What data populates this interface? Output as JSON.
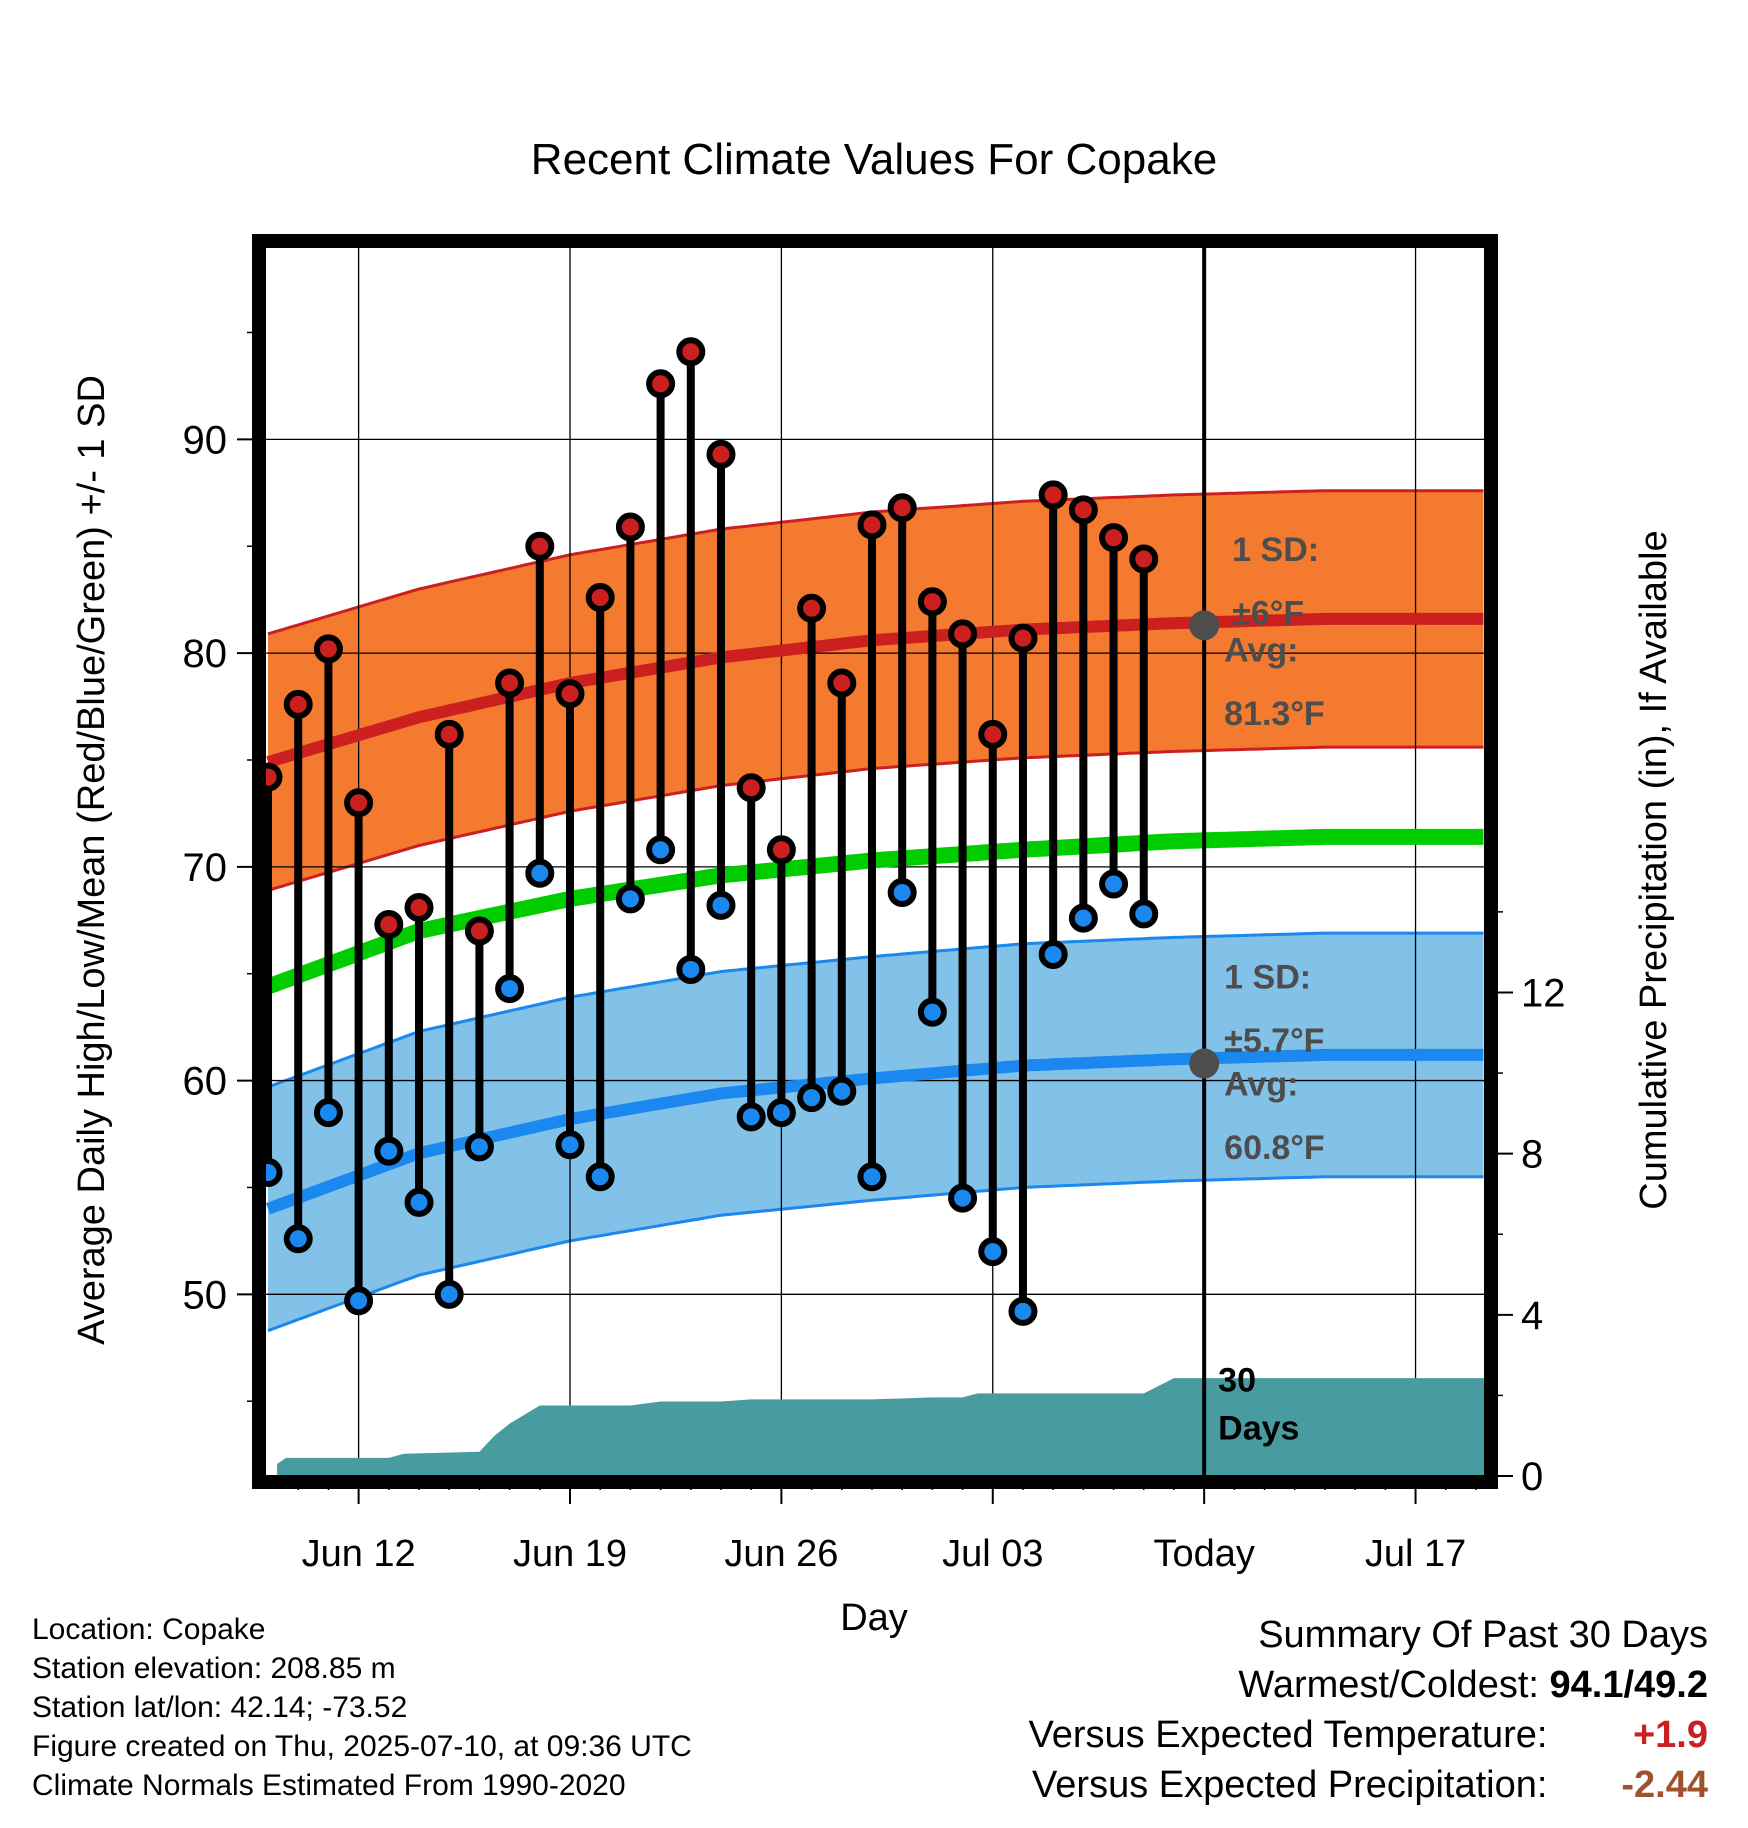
{
  "chart_data": {
    "type": "line",
    "title": "Recent Climate Values For Copake",
    "xlabel": "Day",
    "ylabel_left": "Average Daily High/Low/Mean (Red/Blue/Green) +/- 1 SD",
    "ylabel_right": "Cumulative Precipitation (in), If Available",
    "x_ticks": [
      {
        "day": 3,
        "label": "Jun 12"
      },
      {
        "day": 10,
        "label": "Jun 19"
      },
      {
        "day": 17,
        "label": "Jun 26"
      },
      {
        "day": 24,
        "label": "Jul 03"
      },
      {
        "day": 31,
        "label": "Today"
      },
      {
        "day": 38,
        "label": "Jul 17"
      }
    ],
    "xlim": [
      -0.1,
      40.3
    ],
    "ylim_left": [
      41.5,
      99.0
    ],
    "yticks_left": [
      50,
      60,
      70,
      80,
      90
    ],
    "ylim_right": [
      0,
      30.5
    ],
    "yticks_right": [
      0,
      4,
      8,
      12
    ],
    "today_day": 31,
    "observed_days": [
      0,
      1,
      2,
      3,
      4,
      5,
      6,
      7,
      8,
      9,
      10,
      11,
      12,
      13,
      14,
      15,
      16,
      17,
      18,
      19,
      20,
      21,
      22,
      23,
      24,
      25,
      26,
      27,
      28,
      29
    ],
    "observed_high": [
      74.2,
      77.6,
      80.2,
      73.0,
      67.3,
      68.1,
      76.2,
      67.0,
      78.6,
      85.0,
      78.1,
      82.6,
      85.9,
      92.6,
      94.1,
      89.3,
      73.7,
      70.8,
      82.1,
      78.6,
      86.0,
      86.8,
      82.4,
      80.9,
      76.2,
      80.7,
      87.4,
      86.7,
      85.4,
      84.4
    ],
    "observed_low": [
      55.7,
      52.6,
      58.5,
      49.7,
      56.7,
      54.3,
      50.0,
      56.9,
      64.3,
      69.7,
      57.0,
      55.5,
      68.5,
      70.8,
      65.2,
      68.2,
      58.3,
      58.5,
      59.2,
      59.5,
      55.5,
      68.8,
      63.2,
      54.5,
      52.0,
      49.2,
      65.9,
      67.6,
      69.2,
      67.8
    ],
    "normal_days": [
      0,
      5,
      10,
      15,
      20,
      25,
      30,
      35,
      40.3
    ],
    "normal_high": [
      74.9,
      77.0,
      78.6,
      79.8,
      80.6,
      81.1,
      81.4,
      81.6,
      81.6
    ],
    "normal_high_sd": 6,
    "normal_low": [
      54.0,
      56.6,
      58.2,
      59.4,
      60.1,
      60.7,
      61.0,
      61.2,
      61.2
    ],
    "normal_low_sd": 5.7,
    "normal_mean": [
      64.4,
      67.0,
      68.5,
      69.6,
      70.3,
      70.8,
      71.2,
      71.4,
      71.4
    ],
    "precip_x": [
      0.3,
      0.3,
      0.6,
      4.0,
      4.5,
      7.0,
      7.5,
      8.0,
      9.0,
      12.0,
      13.0,
      15.0,
      16.0,
      20.0,
      22.0,
      23.0,
      23.5,
      29.0,
      30.0,
      40.3
    ],
    "precip_y": [
      0,
      0.3,
      0.45,
      0.45,
      0.55,
      0.6,
      1.0,
      1.3,
      1.75,
      1.75,
      1.85,
      1.85,
      1.9,
      1.9,
      1.95,
      1.95,
      2.05,
      2.05,
      2.43,
      2.43
    ],
    "annotations": {
      "high_sd_line1": "1 SD:",
      "high_sd_line2": "±6°F",
      "high_avg_line1": "Avg:",
      "high_avg_line2": "81.3°F",
      "high_avg_value": 81.3,
      "low_sd_line1": "1 SD:",
      "low_sd_line2": "±5.7°F",
      "low_avg_line1": "Avg:",
      "low_avg_line2": "60.8°F",
      "low_avg_value": 60.8,
      "days_line1": "30",
      "days_line2": "Days"
    },
    "colors": {
      "high_band": "#f47a30",
      "high_line": "#cc2020",
      "low_band": "#82c1e8",
      "low_line": "#1a88ee",
      "mean_line": "#00cc00",
      "precip": "#489ca0",
      "high_marker": "#cc2020",
      "low_marker": "#1a88ee",
      "annotation_text": "#4d4d4d",
      "avg_marker": "#4d4d4d"
    },
    "grid": true
  },
  "footer": {
    "location": "Location: Copake",
    "elevation": "Station elevation: 208.85 m",
    "latlon": "Station lat/lon: 42.14; -73.52",
    "created": "Figure created on Thu, 2025-07-10, at 09:36 UTC",
    "normals": "Climate Normals Estimated From 1990-2020"
  },
  "summary": {
    "title": "Summary Of Past 30 Days",
    "warmest_label": "Warmest/Coldest:",
    "warmest_value": "94.1/49.2",
    "temp_label": "Versus Expected Temperature:",
    "temp_value": "+1.9",
    "temp_color": "#cc2020",
    "precip_label": "Versus Expected Precipitation:",
    "precip_value": "-2.44",
    "precip_color": "#a0522d"
  }
}
